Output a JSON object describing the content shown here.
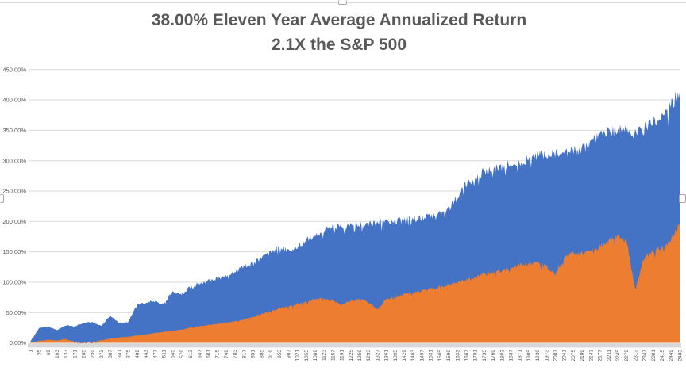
{
  "title": {
    "line1": "38.00% Eleven Year Average  Annualized Return",
    "line2": "2.1X the S&P 500"
  },
  "colors": {
    "series_blue": "#4472C4",
    "series_orange": "#ED7D31",
    "gridline": "#D9D9D9",
    "axis_band": "#D9D9D9",
    "axis_text": "#595959",
    "title_text": "#595959",
    "handle_border": "#A6A6A6",
    "background": "#FFFFFF"
  },
  "selection": {
    "handles": [
      "top-center",
      "left-middle",
      "right-middle"
    ]
  },
  "chart_data": {
    "type": "area",
    "title": "38.00% Eleven Year Average  Annualized Return 2.1X the S&P 500",
    "xlabel": "",
    "ylabel": "",
    "ylim": [
      0,
      450
    ],
    "grid": true,
    "legend": "none",
    "y_tick_values": [
      0,
      50,
      100,
      150,
      200,
      250,
      300,
      350,
      400,
      450
    ],
    "y_tick_labels": [
      "0.00%",
      "50.00%",
      "100.00%",
      "150.00%",
      "200.00%",
      "250.00%",
      "300.00%",
      "350.00%",
      "400.00%",
      "450.00%"
    ],
    "x_tick_labels": [
      1,
      35,
      69,
      103,
      137,
      171,
      205,
      239,
      273,
      307,
      341,
      375,
      409,
      443,
      477,
      511,
      545,
      579,
      613,
      647,
      681,
      715,
      749,
      783,
      817,
      851,
      885,
      919,
      953,
      987,
      1021,
      1055,
      1089,
      1123,
      1157,
      1191,
      1225,
      1259,
      1293,
      1327,
      1361,
      1395,
      1429,
      1463,
      1497,
      1531,
      1565,
      1599,
      1633,
      1667,
      1701,
      1735,
      1769,
      1803,
      1837,
      1871,
      1905,
      1939,
      1973,
      2007,
      2041,
      2075,
      2109,
      2143,
      2177,
      2211,
      2245,
      2279,
      2313,
      2347,
      2381,
      2415,
      2449,
      2483
    ],
    "series": [
      {
        "name": "blue-area-series",
        "color": "#4472C4",
        "values_pct_at_ticks": [
          2,
          24,
          27,
          21,
          29,
          27,
          33,
          34,
          28,
          45,
          33,
          34,
          62,
          66,
          69,
          63,
          85,
          79,
          92,
          97,
          102,
          106,
          110,
          118,
          126,
          132,
          140,
          148,
          160,
          152,
          157,
          170,
          177,
          185,
          191,
          194,
          196,
          197,
          196,
          199,
          200,
          201,
          202,
          204,
          206,
          208,
          211,
          220,
          240,
          260,
          274,
          281,
          284,
          290,
          296,
          299,
          303,
          307,
          312,
          309,
          311,
          316,
          319,
          330,
          338,
          347,
          350,
          352,
          344,
          352,
          362,
          379,
          390,
          413
        ]
      },
      {
        "name": "orange-area-series",
        "color": "#ED7D31",
        "values_pct_at_ticks": [
          1,
          3,
          5,
          4,
          6,
          2,
          1,
          2,
          4,
          7,
          9,
          10,
          12,
          14,
          16,
          18,
          20,
          22,
          25,
          27,
          29,
          31,
          33,
          35,
          38,
          43,
          48,
          52,
          57,
          60,
          63,
          67,
          72,
          73,
          70,
          62,
          70,
          72,
          68,
          55,
          72,
          76,
          80,
          83,
          85,
          89,
          92,
          95,
          99,
          103,
          108,
          114,
          117,
          119,
          124,
          128,
          131,
          132,
          126,
          113,
          140,
          148,
          148,
          152,
          158,
          168,
          174,
          170,
          90,
          138,
          152,
          156,
          170,
          196
        ]
      }
    ]
  }
}
